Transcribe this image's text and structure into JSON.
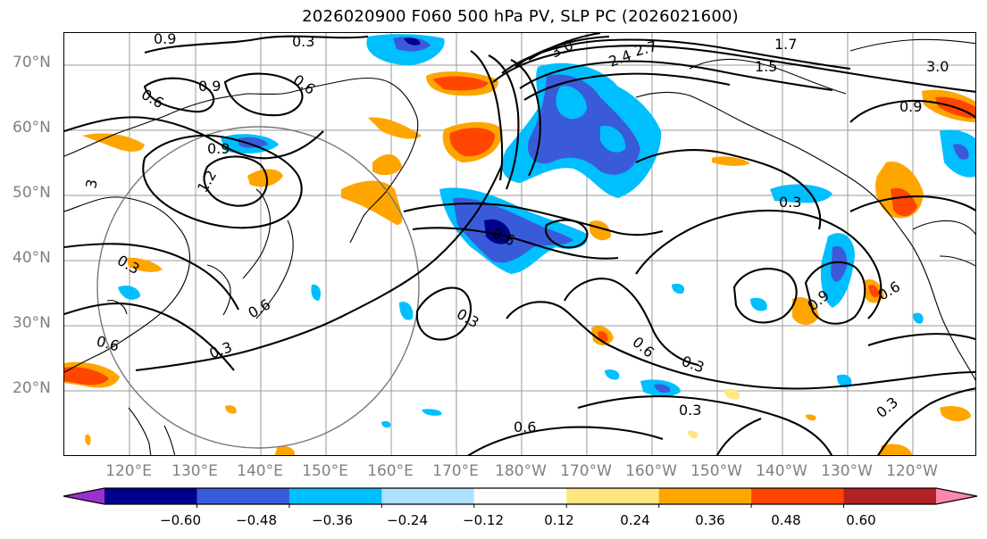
{
  "title": "2026020900 F060 500 hPa PV, SLP PC (2026021600)",
  "lat_labels": [
    "70°N",
    "60°N",
    "50°N",
    "40°N",
    "30°N",
    "20°N"
  ],
  "lon_labels": [
    "120°E",
    "130°E",
    "140°E",
    "150°E",
    "160°E",
    "170°E",
    "180°W",
    "170°W",
    "160°W",
    "150°W",
    "140°W",
    "130°W",
    "120°W"
  ],
  "colorbar": {
    "ticks": [
      "−0.60",
      "−0.48",
      "−0.36",
      "−0.24",
      "−0.12",
      "0.12",
      "0.24",
      "0.36",
      "0.48",
      "0.60"
    ],
    "colors": [
      "#9932cc",
      "#00008b",
      "#3a5bd9",
      "#00bfff",
      "#b0e0ff",
      "#ffffff",
      "#ffe680",
      "#ffa500",
      "#ff4500",
      "#b22222",
      "#ff88aa"
    ]
  },
  "contour_labels": [
    "0.9",
    "0.3",
    "0.6",
    "0.9",
    "3.0",
    "2.4",
    "2.7",
    "1.7",
    "1.5",
    "3.0",
    "0.9",
    "0.6",
    "0.9",
    "1.2",
    "3",
    "0.3",
    "0.3",
    "0.6",
    "0.6",
    "0.3",
    "0.6",
    "0.3",
    "0.6",
    "0.3",
    "0.9",
    "0.6",
    "0.3",
    "0.6",
    "0.3"
  ]
}
